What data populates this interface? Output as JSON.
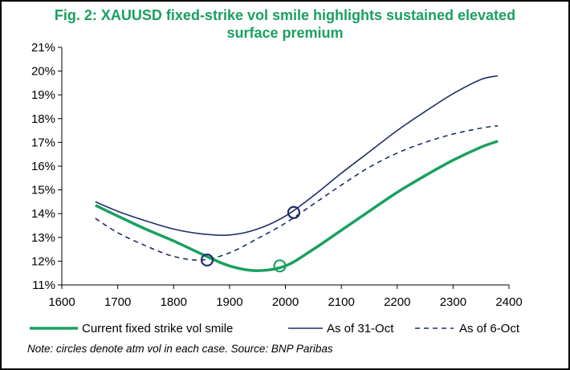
{
  "chart_data": {
    "type": "line",
    "title_lines": [
      "Fig. 2: XAUUSD fixed-strike vol smile highlights sustained elevated",
      "surface premium"
    ],
    "xlim": [
      1600,
      2400
    ],
    "ylim": [
      11,
      21
    ],
    "x_ticks": [
      "1600",
      "1700",
      "1800",
      "1900",
      "2000",
      "2100",
      "2200",
      "2300",
      "2400"
    ],
    "y_ticks": [
      "11%",
      "12%",
      "13%",
      "14%",
      "15%",
      "16%",
      "17%",
      "18%",
      "19%",
      "20%",
      "21%"
    ],
    "series": [
      {
        "name": "Current fixed strike vol smile",
        "color": "#1aa060",
        "style": "solid-thick",
        "x": [
          1660,
          1700,
          1750,
          1800,
          1850,
          1900,
          1950,
          2000,
          2050,
          2100,
          2150,
          2200,
          2250,
          2300,
          2350,
          2380
        ],
        "y": [
          14.35,
          13.9,
          13.35,
          12.85,
          12.3,
          11.8,
          11.6,
          11.8,
          12.5,
          13.3,
          14.1,
          14.9,
          15.6,
          16.25,
          16.8,
          17.05
        ],
        "atm_marker": {
          "x": 1990,
          "y": 11.8
        }
      },
      {
        "name": "As of 31-Oct",
        "color": "#1f2d6b",
        "style": "solid-thin",
        "x": [
          1660,
          1700,
          1750,
          1800,
          1850,
          1900,
          1950,
          2000,
          2050,
          2100,
          2150,
          2200,
          2250,
          2300,
          2350,
          2380
        ],
        "y": [
          14.5,
          14.1,
          13.7,
          13.35,
          13.15,
          13.1,
          13.35,
          13.9,
          14.75,
          15.7,
          16.6,
          17.5,
          18.3,
          19.05,
          19.65,
          19.8
        ],
        "atm_marker": {
          "x": 2015,
          "y": 14.05
        }
      },
      {
        "name": "As of 6-Oct",
        "color": "#1f2d6b",
        "style": "dashed",
        "x": [
          1660,
          1700,
          1750,
          1800,
          1850,
          1900,
          1950,
          2000,
          2050,
          2100,
          2150,
          2200,
          2250,
          2300,
          2350,
          2380
        ],
        "y": [
          13.8,
          13.2,
          12.65,
          12.2,
          12.05,
          12.35,
          12.95,
          13.6,
          14.4,
          15.2,
          15.95,
          16.55,
          17.0,
          17.35,
          17.6,
          17.7
        ],
        "atm_marker": {
          "x": 1860,
          "y": 12.05
        }
      }
    ],
    "legend": [
      "Current fixed strike vol smile",
      "As of 31-Oct",
      "As of 6-Oct"
    ]
  },
  "note": "Note: circles denote atm vol in each case. Source: BNP Paribas"
}
